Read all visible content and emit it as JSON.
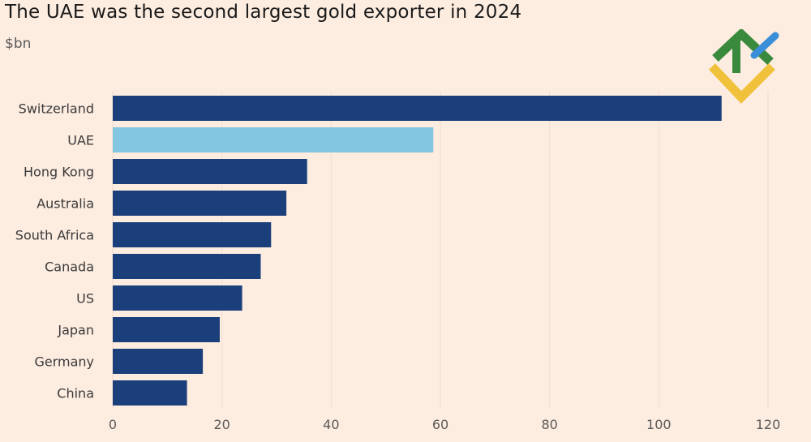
{
  "chart_data": {
    "type": "bar",
    "orientation": "horizontal",
    "title": "The UAE was the second largest gold exporter in 2024",
    "unit_label": "$bn",
    "categories": [
      "Switzerland",
      "UAE",
      "Hong Kong",
      "Australia",
      "South Africa",
      "Canada",
      "US",
      "Japan",
      "Germany",
      "China"
    ],
    "values": [
      111.5,
      58.7,
      35.6,
      31.8,
      29.0,
      27.1,
      23.7,
      19.6,
      16.5,
      13.6
    ],
    "highlight_category": "UAE",
    "xlim": [
      0,
      120
    ],
    "xticks": [
      0,
      20,
      40,
      60,
      80,
      100,
      120
    ],
    "xtick_labels": [
      "0",
      "20",
      "40",
      "60",
      "80",
      "100",
      "120"
    ],
    "grid": true,
    "colors": {
      "bar": "#1b3f7a",
      "highlight": "#82c6e2",
      "grid": "#f1ddd2",
      "background": "#fdece0"
    }
  },
  "logo": {
    "name": "brand-logo",
    "colors": {
      "green": "#3a8a3d",
      "yellow": "#f0c23b",
      "blue": "#3b8fd8"
    }
  }
}
